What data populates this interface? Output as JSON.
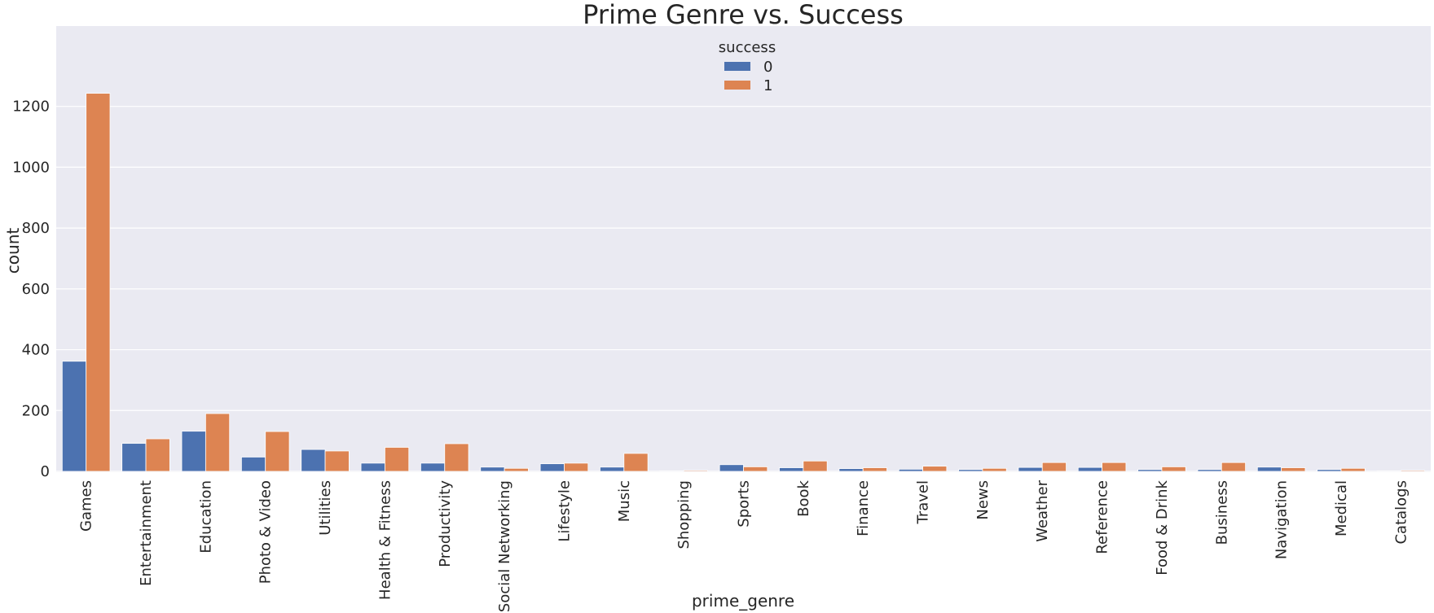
{
  "chart_data": {
    "type": "bar",
    "title": "Prime Genre vs. Success",
    "xlabel": "prime_genre",
    "ylabel": "count",
    "ylim": [
      0,
      1300
    ],
    "yticks": [
      0,
      200,
      400,
      600,
      800,
      1000,
      1200
    ],
    "grid": true,
    "legend_placement": "top-center",
    "legend_title": "success",
    "categories": [
      "Games",
      "Entertainment",
      "Education",
      "Photo & Video",
      "Utilities",
      "Health & Fitness",
      "Productivity",
      "Social Networking",
      "Lifestyle",
      "Music",
      "Shopping",
      "Sports",
      "Book",
      "Finance",
      "Travel",
      "News",
      "Weather",
      "Reference",
      "Food & Drink",
      "Business",
      "Navigation",
      "Medical",
      "Catalogs"
    ],
    "series": [
      {
        "name": "0",
        "color": "#4c72b0",
        "values": [
          362,
          92,
          132,
          47,
          72,
          27,
          27,
          14,
          25,
          14,
          1,
          22,
          12,
          9,
          7,
          6,
          13,
          13,
          6,
          6,
          14,
          6,
          1
        ]
      },
      {
        "name": "1",
        "color": "#dd8452",
        "values": [
          1243,
          107,
          190,
          131,
          67,
          79,
          91,
          10,
          27,
          59,
          3,
          15,
          34,
          12,
          17,
          10,
          29,
          29,
          15,
          29,
          12,
          10,
          3
        ]
      }
    ]
  },
  "colors": {
    "plot_background": "#eaeaf2",
    "grid": "#ffffff",
    "text": "#262626"
  }
}
